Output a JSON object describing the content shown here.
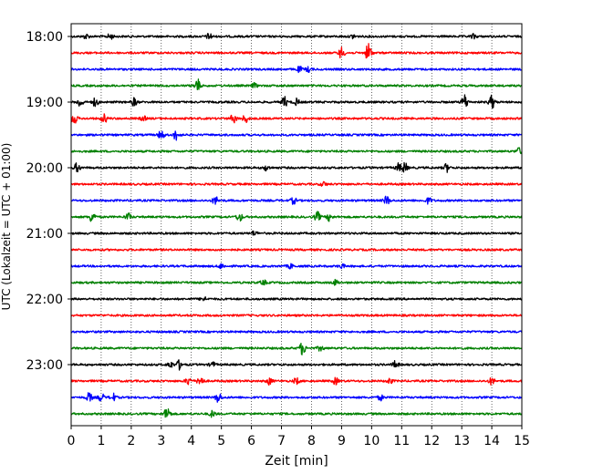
{
  "chart_data": {
    "type": "line",
    "title": "",
    "xlabel": "Zeit  [min]",
    "ylabel": "UTC (Lokalzeit = UTC + 01:00)",
    "xlim": [
      0,
      15
    ],
    "x_ticks": [
      "0",
      "1",
      "2",
      "3",
      "4",
      "5",
      "6",
      "7",
      "8",
      "9",
      "10",
      "11",
      "12",
      "13",
      "14",
      "15"
    ],
    "y_ticks": [
      "18:00",
      "19:00",
      "20:00",
      "21:00",
      "22:00",
      "23:00"
    ],
    "grid": "vertical dotted",
    "colors": [
      "#000000",
      "#ff0000",
      "#0000ff",
      "#008000"
    ],
    "row_interval_minutes": 15,
    "traces": [
      {
        "start": "18:00",
        "color": "#000000",
        "events": [
          [
            0.5,
            1.2
          ],
          [
            1.3,
            1.4
          ],
          [
            4.6,
            1.6
          ],
          [
            9.4,
            1.1
          ],
          [
            13.4,
            1.1
          ]
        ]
      },
      {
        "start": "18:15",
        "color": "#ff0000",
        "events": [
          [
            9.0,
            2.8
          ],
          [
            9.9,
            5.0
          ]
        ]
      },
      {
        "start": "18:30",
        "color": "#0000ff",
        "events": [
          [
            7.6,
            1.3
          ],
          [
            7.9,
            1.2
          ]
        ]
      },
      {
        "start": "18:45",
        "color": "#008000",
        "events": [
          [
            4.2,
            3.3
          ],
          [
            6.1,
            1.1
          ]
        ]
      },
      {
        "start": "19:00",
        "color": "#000000",
        "events": [
          [
            0.3,
            2.4
          ],
          [
            0.8,
            2.0
          ],
          [
            2.1,
            2.0
          ],
          [
            7.1,
            2.6
          ],
          [
            7.5,
            1.6
          ],
          [
            13.1,
            3.8
          ],
          [
            14.0,
            3.3
          ]
        ]
      },
      {
        "start": "19:15",
        "color": "#ff0000",
        "events": [
          [
            0.1,
            2.6
          ],
          [
            1.1,
            2.2
          ],
          [
            2.4,
            1.2
          ],
          [
            5.4,
            2.2
          ],
          [
            5.8,
            1.9
          ]
        ]
      },
      {
        "start": "19:30",
        "color": "#0000ff",
        "events": [
          [
            3.0,
            2.4
          ],
          [
            3.5,
            2.6
          ]
        ]
      },
      {
        "start": "19:45",
        "color": "#008000",
        "events": [
          [
            14.9,
            1.6
          ]
        ]
      },
      {
        "start": "20:00",
        "color": "#000000",
        "events": [
          [
            0.2,
            2.2
          ],
          [
            6.5,
            1.3
          ],
          [
            10.9,
            2.0
          ],
          [
            11.1,
            2.4
          ],
          [
            12.5,
            2.0
          ]
        ]
      },
      {
        "start": "20:15",
        "color": "#ff0000",
        "events": [
          [
            8.4,
            1.1
          ]
        ]
      },
      {
        "start": "20:30",
        "color": "#0000ff",
        "events": [
          [
            4.8,
            2.0
          ],
          [
            7.4,
            1.6
          ],
          [
            10.5,
            2.3
          ],
          [
            11.9,
            1.5
          ]
        ]
      },
      {
        "start": "20:45",
        "color": "#008000",
        "events": [
          [
            0.7,
            2.8
          ],
          [
            1.9,
            1.7
          ],
          [
            5.6,
            2.2
          ],
          [
            8.2,
            2.3
          ],
          [
            8.6,
            1.8
          ]
        ]
      },
      {
        "start": "21:00",
        "color": "#000000",
        "events": [
          [
            6.1,
            1.1
          ]
        ]
      },
      {
        "start": "21:15",
        "color": "#ff0000",
        "events": []
      },
      {
        "start": "21:30",
        "color": "#0000ff",
        "events": [
          [
            5.0,
            1.2
          ],
          [
            7.3,
            1.1
          ],
          [
            9.0,
            1.1
          ]
        ]
      },
      {
        "start": "21:45",
        "color": "#008000",
        "events": [
          [
            6.4,
            1.2
          ],
          [
            8.8,
            1.2
          ]
        ]
      },
      {
        "start": "22:00",
        "color": "#000000",
        "events": [
          [
            4.4,
            1.1
          ]
        ]
      },
      {
        "start": "22:15",
        "color": "#ff0000",
        "events": []
      },
      {
        "start": "22:30",
        "color": "#0000ff",
        "events": []
      },
      {
        "start": "22:45",
        "color": "#008000",
        "events": [
          [
            7.7,
            3.3
          ],
          [
            8.3,
            1.3
          ]
        ]
      },
      {
        "start": "23:00",
        "color": "#000000",
        "events": [
          [
            3.3,
            1.6
          ],
          [
            3.6,
            2.2
          ],
          [
            4.7,
            1.3
          ],
          [
            10.8,
            1.8
          ]
        ]
      },
      {
        "start": "23:15",
        "color": "#ff0000",
        "events": [
          [
            3.9,
            1.9
          ],
          [
            4.3,
            2.8
          ],
          [
            6.6,
            1.7
          ],
          [
            7.5,
            1.5
          ],
          [
            8.8,
            1.6
          ],
          [
            10.6,
            1.3
          ],
          [
            14.0,
            1.7
          ]
        ]
      },
      {
        "start": "23:30",
        "color": "#0000ff",
        "events": [
          [
            0.6,
            2.2
          ],
          [
            1.0,
            2.0
          ],
          [
            1.4,
            1.8
          ],
          [
            4.9,
            2.6
          ],
          [
            10.3,
            1.3
          ]
        ]
      },
      {
        "start": "23:45",
        "color": "#008000",
        "events": [
          [
            3.2,
            3.6
          ],
          [
            4.7,
            1.6
          ]
        ]
      }
    ]
  }
}
